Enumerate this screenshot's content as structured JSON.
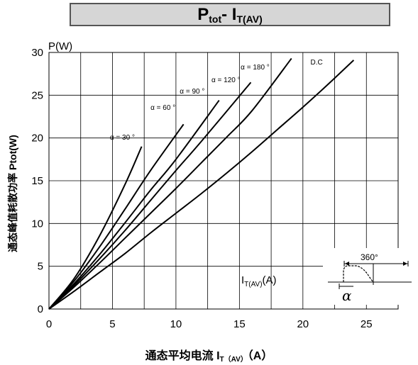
{
  "chart_data": {
    "type": "line",
    "title": "Ptot- IT(AV)",
    "title_main": "P",
    "title_main_sub": "tot",
    "title_dash": "- I",
    "title_dash_sub": "T(AV)",
    "ylabel": "通态峰值耗散功率 Ptot(W)",
    "xlabel_main": "通态平均电流 I",
    "xlabel_sub": "T（AV）",
    "xlabel_tail": "（A）",
    "y_unit_label": "P(W)",
    "x_unit_label_main": "I",
    "x_unit_label_sub": "T(AV)",
    "x_unit_label_tail": "(A)",
    "xlim": [
      0,
      27.5
    ],
    "ylim": [
      0,
      30
    ],
    "x_ticks": [
      0,
      5,
      10,
      15,
      20,
      25
    ],
    "y_ticks": [
      0,
      5,
      10,
      15,
      20,
      25,
      30
    ],
    "grid": true,
    "series": [
      {
        "name": "α = 30°",
        "label_text": "α = 30 °",
        "label_at": [
          4.8,
          19.8
        ],
        "x": [
          0,
          2,
          4,
          6,
          7.3
        ],
        "y": [
          0,
          3.6,
          8.6,
          14.6,
          19.0
        ]
      },
      {
        "name": "α = 60°",
        "label_text": "α = 60 °",
        "label_at": [
          8.0,
          23.3
        ],
        "x": [
          0,
          2,
          4,
          6,
          8,
          10.6
        ],
        "y": [
          0,
          3.3,
          7.3,
          11.7,
          16.2,
          21.6
        ]
      },
      {
        "name": "α = 90°",
        "label_text": "α = 90 °",
        "label_at": [
          10.3,
          25.2
        ],
        "x": [
          0,
          2,
          4,
          6,
          8,
          10,
          13.4
        ],
        "y": [
          0,
          3.0,
          6.4,
          10.1,
          13.9,
          17.5,
          24.4
        ]
      },
      {
        "name": "α = 120°",
        "label_text": "α = 120 °",
        "label_at": [
          12.8,
          26.5
        ],
        "x": [
          0,
          2,
          4,
          6,
          8,
          10,
          12,
          15.9
        ],
        "y": [
          0,
          2.8,
          5.9,
          9.2,
          12.7,
          16.2,
          19.6,
          26.5
        ]
      },
      {
        "name": "α = 180°",
        "label_text": "α = 180 °",
        "label_at": [
          15.1,
          28.0
        ],
        "x": [
          0,
          2,
          4,
          6,
          8,
          10,
          12,
          14,
          16,
          19.1
        ],
        "y": [
          0,
          2.6,
          5.4,
          8.3,
          11.2,
          14.1,
          17.1,
          20.1,
          23.2,
          29.3
        ]
      },
      {
        "name": "D.C",
        "label_text": "D.C",
        "label_at": [
          20.6,
          28.6
        ],
        "x": [
          0,
          2,
          4,
          6,
          8,
          10,
          12,
          14,
          16,
          18,
          20,
          22,
          24
        ],
        "y": [
          0,
          2.1,
          4.3,
          6.5,
          8.9,
          11.2,
          13.5,
          15.9,
          18.4,
          21.0,
          23.6,
          26.3,
          29.1
        ]
      }
    ]
  },
  "inset": {
    "angle_label": "360°",
    "alpha_label": "α"
  }
}
